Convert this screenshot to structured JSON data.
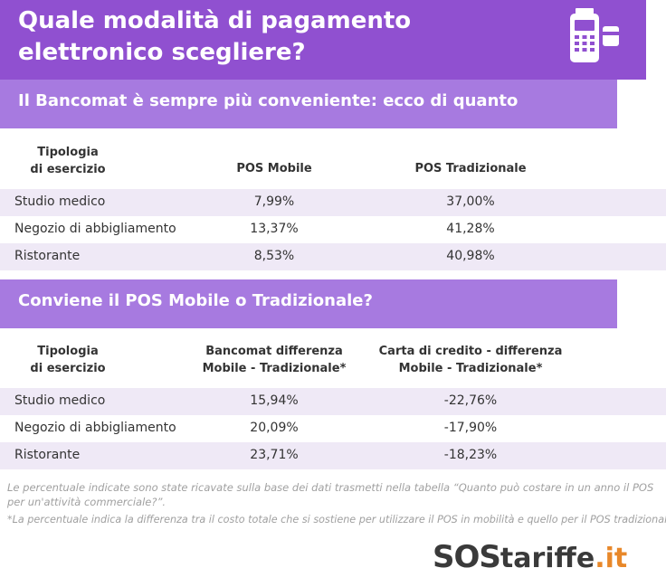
{
  "header": {
    "title": "Quale modalità di pagamento elettronico scegliere?",
    "icon": "pos-terminal-icon",
    "background": "#9050d0"
  },
  "section1": {
    "title": "Il Bancomat è sempre più conveniente: ecco di quanto",
    "columns": [
      "Tipologia di esercizio",
      "POS Mobile",
      "POS Tradizionale"
    ],
    "col1_line1": "Tipologia",
    "col1_line2": "di esercizio",
    "rows": [
      {
        "type": "Studio medico",
        "a": "7,99%",
        "b": "37,00%"
      },
      {
        "type": "Negozio di abbigliamento",
        "a": "13,37%",
        "b": "41,28%"
      },
      {
        "type": "Ristorante",
        "a": "8,53%",
        "b": "40,98%"
      }
    ]
  },
  "section2": {
    "title": "Conviene il POS Mobile o Tradizionale?",
    "col1_line1": "Tipologia",
    "col1_line2": "di esercizio",
    "col2_line1": "Bancomat differenza",
    "col2_line2": "Mobile - Tradizionale*",
    "col3_line1": "Carta di credito - differenza",
    "col3_line2": "Mobile - Tradizionale*",
    "rows": [
      {
        "type": "Studio medico",
        "a": "15,94%",
        "b": "-22,76%"
      },
      {
        "type": "Negozio di abbigliamento",
        "a": "20,09%",
        "b": "-17,90%"
      },
      {
        "type": "Ristorante",
        "a": "23,71%",
        "b": "-18,23%"
      }
    ]
  },
  "notes": {
    "line1": "Le percentuale indicate sono state ricavate sulla base dei dati trasmetti nella tabella “Quanto può costare in un anno il POS per un'attività commerciale?”.",
    "line2": "*La percentuale indica la differenza tra il costo totale che si sostiene per utilizzare il POS in mobilità e quello per il POS tradizionale."
  },
  "logo": {
    "sos": "SOS",
    "tariffe": "tariffe",
    "it": ".it"
  },
  "colors": {
    "shade": "#efe9f6",
    "subbar": "#a77ae0",
    "accent": "#e8882a"
  }
}
